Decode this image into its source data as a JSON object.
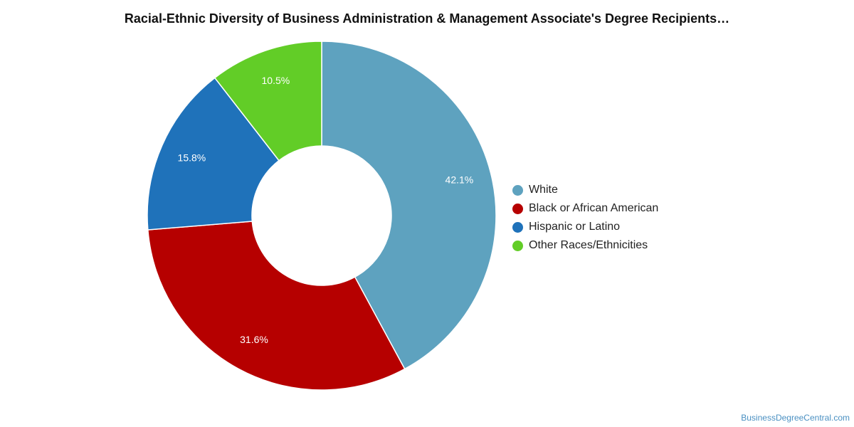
{
  "chart_data": {
    "type": "pie",
    "title": "Racial-Ethnic Diversity of Business Administration & Management Associate's Degree Recipients…",
    "slices": [
      {
        "label": "White",
        "value": 42.1,
        "value_label": "42.1%",
        "color": "#5ea2bf"
      },
      {
        "label": "Black or African American",
        "value": 31.6,
        "value_label": "31.6%",
        "color": "#b60000"
      },
      {
        "label": "Hispanic or Latino",
        "value": 15.8,
        "value_label": "15.8%",
        "color": "#1f72ba"
      },
      {
        "label": "Other Races/Ethnicities",
        "value": 10.5,
        "value_label": "10.5%",
        "color": "#62cd27"
      }
    ],
    "legend_position": "right"
  },
  "source": "BusinessDegreeCentral.com"
}
